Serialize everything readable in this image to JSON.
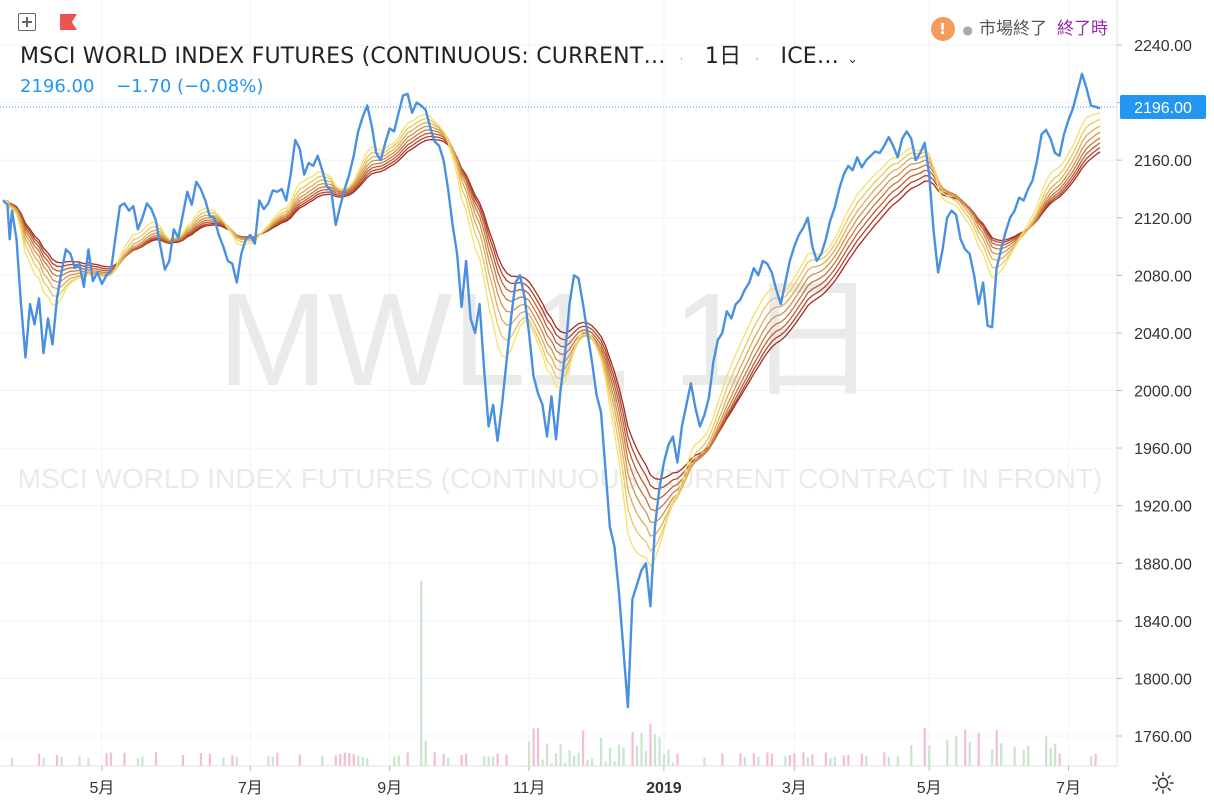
{
  "header": {
    "title": "MSCI WORLD INDEX FUTURES (CONTINUOUS: CURRENT…",
    "interval": "1日",
    "exchange": "ICE…",
    "price": "2196.00",
    "change": "−1.70 (−0.08%)",
    "market_status": "市場終了",
    "market_status2": "終了時"
  },
  "watermark": {
    "symbol": "MWL1, 1日",
    "name": "MSCI WORLD INDEX FUTURES (CONTINUOUS: CURRENT CONTRACT IN FRONT)"
  },
  "colors": {
    "price_line": "#4a90e2",
    "price_tag": "#2196f3",
    "ribbon_fast": "#f5e06a",
    "ribbon_slow": "#a52a1e",
    "volume_up": "#c8e6c9",
    "volume_down": "#f8bbd0",
    "axis_text": "#333333",
    "status_closed": "#9c27b0",
    "warning": "#f29d5c"
  },
  "chart_data": {
    "type": "line",
    "x_labels": [
      "5月",
      "7月",
      "9月",
      "11月",
      "2019",
      "3月",
      "5月",
      "7月"
    ],
    "y_ticks": [
      "2240.00",
      "2200.00",
      "2160.00",
      "2120.00",
      "2080.00",
      "2040.00",
      "2000.00",
      "1960.00",
      "1920.00",
      "1880.00",
      "1840.00",
      "1800.00",
      "1760.00"
    ],
    "ylim": [
      1738,
      2260
    ],
    "last_price": "2196.00",
    "series": [
      {
        "values": [
          [
            0,
            2132
          ],
          [
            2,
            2129
          ],
          [
            3,
            2105
          ],
          [
            4,
            2125
          ],
          [
            6,
            2105
          ],
          [
            8,
            2060
          ],
          [
            10,
            2023
          ],
          [
            12,
            2060
          ],
          [
            14,
            2046
          ],
          [
            16,
            2064
          ],
          [
            18,
            2026
          ],
          [
            20,
            2050
          ],
          [
            22,
            2032
          ],
          [
            24,
            2064
          ],
          [
            26,
            2082
          ],
          [
            28,
            2098
          ],
          [
            30,
            2095
          ],
          [
            32,
            2085
          ],
          [
            34,
            2088
          ],
          [
            36,
            2072
          ],
          [
            38,
            2098
          ],
          [
            40,
            2076
          ],
          [
            42,
            2082
          ],
          [
            44,
            2074
          ],
          [
            46,
            2080
          ],
          [
            48,
            2083
          ],
          [
            50,
            2106
          ],
          [
            52,
            2128
          ],
          [
            54,
            2130
          ],
          [
            56,
            2125
          ],
          [
            58,
            2128
          ],
          [
            60,
            2112
          ],
          [
            62,
            2120
          ],
          [
            64,
            2130
          ],
          [
            66,
            2126
          ],
          [
            68,
            2118
          ],
          [
            70,
            2100
          ],
          [
            72,
            2084
          ],
          [
            74,
            2090
          ],
          [
            76,
            2112
          ],
          [
            78,
            2106
          ],
          [
            80,
            2122
          ],
          [
            82,
            2138
          ],
          [
            84,
            2129
          ],
          [
            86,
            2145
          ],
          [
            88,
            2140
          ],
          [
            90,
            2132
          ],
          [
            92,
            2121
          ],
          [
            94,
            2120
          ],
          [
            96,
            2108
          ],
          [
            98,
            2100
          ],
          [
            100,
            2090
          ],
          [
            102,
            2088
          ],
          [
            104,
            2075
          ],
          [
            106,
            2095
          ],
          [
            108,
            2105
          ],
          [
            110,
            2108
          ],
          [
            112,
            2102
          ],
          [
            114,
            2132
          ],
          [
            116,
            2126
          ],
          [
            118,
            2130
          ],
          [
            120,
            2139
          ],
          [
            122,
            2138
          ],
          [
            124,
            2140
          ],
          [
            126,
            2132
          ],
          [
            128,
            2150
          ],
          [
            130,
            2174
          ],
          [
            132,
            2168
          ],
          [
            134,
            2150
          ],
          [
            136,
            2158
          ],
          [
            138,
            2156
          ],
          [
            140,
            2163
          ],
          [
            142,
            2153
          ],
          [
            144,
            2142
          ],
          [
            146,
            2139
          ],
          [
            148,
            2115
          ],
          [
            150,
            2128
          ],
          [
            152,
            2140
          ],
          [
            154,
            2150
          ],
          [
            156,
            2163
          ],
          [
            158,
            2180
          ],
          [
            160,
            2190
          ],
          [
            162,
            2198
          ],
          [
            164,
            2184
          ],
          [
            166,
            2165
          ],
          [
            168,
            2160
          ],
          [
            170,
            2172
          ],
          [
            172,
            2182
          ],
          [
            174,
            2180
          ],
          [
            176,
            2193
          ],
          [
            178,
            2205
          ],
          [
            180,
            2206
          ],
          [
            182,
            2193
          ],
          [
            184,
            2200
          ],
          [
            186,
            2198
          ],
          [
            188,
            2195
          ],
          [
            190,
            2183
          ],
          [
            192,
            2173
          ],
          [
            194,
            2170
          ],
          [
            196,
            2160
          ],
          [
            198,
            2140
          ],
          [
            200,
            2115
          ],
          [
            202,
            2095
          ],
          [
            204,
            2058
          ],
          [
            206,
            2090
          ],
          [
            208,
            2050
          ],
          [
            210,
            2040
          ],
          [
            212,
            2060
          ],
          [
            214,
            2015
          ],
          [
            216,
            1975
          ],
          [
            218,
            1990
          ],
          [
            220,
            1965
          ],
          [
            222,
            1990
          ],
          [
            224,
            2020
          ],
          [
            226,
            2050
          ],
          [
            228,
            2075
          ],
          [
            230,
            2080
          ],
          [
            232,
            2065
          ],
          [
            234,
            2040
          ],
          [
            236,
            2010
          ],
          [
            238,
            1998
          ],
          [
            240,
            1990
          ],
          [
            242,
            1968
          ],
          [
            244,
            1996
          ],
          [
            246,
            1966
          ],
          [
            248,
            2000
          ],
          [
            250,
            2025
          ],
          [
            252,
            2060
          ],
          [
            254,
            2080
          ],
          [
            256,
            2078
          ],
          [
            258,
            2060
          ],
          [
            260,
            2040
          ],
          [
            262,
            2020
          ],
          [
            264,
            1997
          ],
          [
            266,
            1985
          ],
          [
            268,
            1945
          ],
          [
            270,
            1905
          ],
          [
            272,
            1892
          ],
          [
            274,
            1860
          ],
          [
            276,
            1820
          ],
          [
            278,
            1780
          ],
          [
            280,
            1855
          ],
          [
            282,
            1865
          ],
          [
            284,
            1875
          ],
          [
            286,
            1880
          ],
          [
            288,
            1850
          ],
          [
            290,
            1905
          ],
          [
            292,
            1932
          ],
          [
            294,
            1950
          ],
          [
            296,
            1962
          ],
          [
            298,
            1968
          ],
          [
            300,
            1950
          ],
          [
            302,
            1975
          ],
          [
            304,
            1990
          ],
          [
            306,
            2005
          ],
          [
            308,
            1988
          ],
          [
            310,
            1975
          ],
          [
            312,
            1983
          ],
          [
            314,
            1995
          ],
          [
            316,
            2020
          ],
          [
            318,
            2035
          ],
          [
            320,
            2040
          ],
          [
            322,
            2055
          ],
          [
            324,
            2050
          ],
          [
            326,
            2060
          ],
          [
            328,
            2063
          ],
          [
            330,
            2070
          ],
          [
            332,
            2075
          ],
          [
            334,
            2085
          ],
          [
            336,
            2080
          ],
          [
            338,
            2090
          ],
          [
            340,
            2088
          ],
          [
            342,
            2082
          ],
          [
            344,
            2070
          ],
          [
            346,
            2060
          ],
          [
            348,
            2075
          ],
          [
            350,
            2090
          ],
          [
            352,
            2100
          ],
          [
            354,
            2108
          ],
          [
            356,
            2113
          ],
          [
            358,
            2120
          ],
          [
            360,
            2100
          ],
          [
            362,
            2090
          ],
          [
            364,
            2095
          ],
          [
            366,
            2105
          ],
          [
            368,
            2118
          ],
          [
            370,
            2127
          ],
          [
            372,
            2140
          ],
          [
            374,
            2150
          ],
          [
            376,
            2156
          ],
          [
            378,
            2153
          ],
          [
            380,
            2162
          ],
          [
            382,
            2155
          ],
          [
            384,
            2160
          ],
          [
            386,
            2163
          ],
          [
            388,
            2166
          ],
          [
            390,
            2165
          ],
          [
            392,
            2170
          ],
          [
            394,
            2176
          ],
          [
            396,
            2170
          ],
          [
            398,
            2162
          ],
          [
            400,
            2175
          ],
          [
            402,
            2180
          ],
          [
            404,
            2175
          ],
          [
            406,
            2160
          ],
          [
            408,
            2165
          ],
          [
            410,
            2172
          ],
          [
            412,
            2150
          ],
          [
            414,
            2110
          ],
          [
            416,
            2082
          ],
          [
            418,
            2098
          ],
          [
            420,
            2120
          ],
          [
            422,
            2125
          ],
          [
            424,
            2122
          ],
          [
            426,
            2105
          ],
          [
            428,
            2098
          ],
          [
            430,
            2095
          ],
          [
            432,
            2080
          ],
          [
            434,
            2060
          ],
          [
            436,
            2075
          ],
          [
            438,
            2045
          ],
          [
            440,
            2044
          ],
          [
            442,
            2085
          ],
          [
            444,
            2098
          ],
          [
            446,
            2110
          ],
          [
            448,
            2120
          ],
          [
            450,
            2125
          ],
          [
            452,
            2134
          ],
          [
            454,
            2132
          ],
          [
            456,
            2140
          ],
          [
            458,
            2146
          ],
          [
            460,
            2160
          ],
          [
            462,
            2178
          ],
          [
            464,
            2181
          ],
          [
            466,
            2175
          ],
          [
            468,
            2165
          ],
          [
            470,
            2163
          ],
          [
            472,
            2178
          ],
          [
            474,
            2188
          ],
          [
            476,
            2196
          ],
          [
            478,
            2208
          ],
          [
            480,
            2220
          ],
          [
            482,
            2210
          ],
          [
            484,
            2198
          ],
          [
            486,
            2197
          ],
          [
            488,
            2196
          ]
        ]
      }
    ],
    "ribbon_periods": [
      20,
      25,
      30,
      35,
      40,
      45,
      50,
      55
    ]
  },
  "settings": {
    "gear_icon": "gear-icon"
  }
}
